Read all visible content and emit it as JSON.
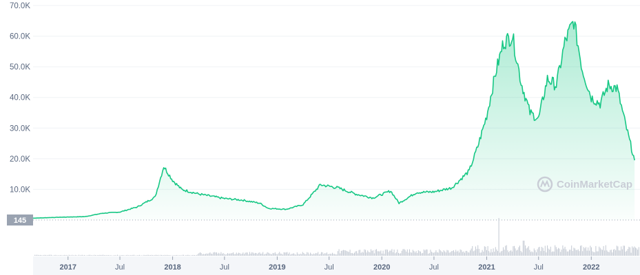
{
  "chart_data": {
    "type": "area",
    "series": [
      {
        "x": [
          "2016-09",
          "2016-12",
          "2017-03",
          "2017-05",
          "2017-07",
          "2017-09",
          "2017-11",
          "2017-12",
          "2018-01",
          "2018-02",
          "2018-04",
          "2018-05",
          "2018-07",
          "2018-09",
          "2018-11",
          "2018-12",
          "2019-02",
          "2019-04",
          "2019-06",
          "2019-08",
          "2019-10",
          "2019-12",
          "2020-02",
          "2020-03",
          "2020-05",
          "2020-07",
          "2020-09",
          "2020-11",
          "2020-12",
          "2021-01",
          "2021-02",
          "2021-03",
          "2021-04",
          "2021-05",
          "2021-06",
          "2021-07",
          "2021-08",
          "2021-09",
          "2021-10",
          "2021-11",
          "2021-12",
          "2022-01",
          "2022-02",
          "2022-03",
          "2022-04",
          "2022-05",
          "2022-06"
        ],
        "values": [
          600,
          900,
          1100,
          2200,
          2600,
          4300,
          7500,
          17500,
          13000,
          10000,
          8500,
          8000,
          7000,
          6500,
          5500,
          3800,
          3500,
          5000,
          11500,
          10500,
          8500,
          7200,
          9500,
          5500,
          9000,
          9200,
          10500,
          16000,
          24000,
          34000,
          48000,
          58000,
          60000,
          45000,
          35000,
          33000,
          46000,
          44000,
          58000,
          65000,
          49000,
          40000,
          38000,
          44000,
          43000,
          31000,
          19500
        ]
      }
    ],
    "ylim": [
      0,
      70000
    ],
    "yticks": [
      "10.0K",
      "20.0K",
      "30.0K",
      "40.0K",
      "50.0K",
      "60.0K",
      "70.0K"
    ],
    "xticks": [
      {
        "label": "2017",
        "date": "2017-01",
        "year": true
      },
      {
        "label": "Jul",
        "date": "2017-07",
        "year": false
      },
      {
        "label": "2018",
        "date": "2018-01",
        "year": true
      },
      {
        "label": "Jul",
        "date": "2018-07",
        "year": false
      },
      {
        "label": "2019",
        "date": "2019-01",
        "year": true
      },
      {
        "label": "Jul",
        "date": "2019-07",
        "year": false
      },
      {
        "label": "2020",
        "date": "2020-01",
        "year": true
      },
      {
        "label": "Jul",
        "date": "2020-07",
        "year": false
      },
      {
        "label": "2021",
        "date": "2021-01",
        "year": true
      },
      {
        "label": "Jul",
        "date": "2021-07",
        "year": false
      },
      {
        "label": "2022",
        "date": "2022-01",
        "year": true
      }
    ],
    "current_label": "145",
    "grid": true,
    "colors": {
      "line": "#16c784",
      "fill": "#16c784",
      "grid": "#eff2f5",
      "axis": "#58667e",
      "badge": "#9aa3b1"
    }
  },
  "watermark": {
    "text": "CoinMarketCap"
  }
}
